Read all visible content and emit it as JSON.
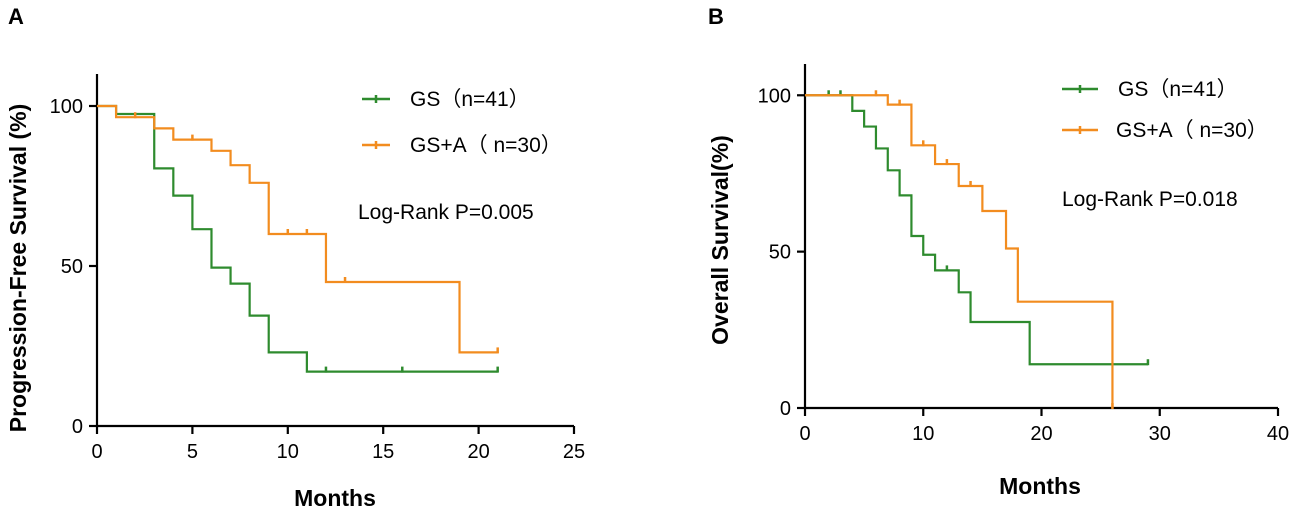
{
  "chart_data": [
    {
      "type": "line",
      "panel_label": "A",
      "xlabel": "Months",
      "ylabel": "Progression-Free Survival (%)",
      "xlim": [
        0,
        25
      ],
      "ylim": [
        0,
        110
      ],
      "xticks": [
        0,
        5,
        10,
        15,
        20,
        25
      ],
      "yticks": [
        0,
        50,
        100
      ],
      "annotation": "Log-Rank P=0.005",
      "series": [
        {
          "name": "GS（n=41）",
          "color": "#2e8b2e",
          "x": [
            0,
            1,
            3,
            4,
            5,
            6,
            7,
            8,
            9,
            11,
            21
          ],
          "y": [
            100,
            97.5,
            80.5,
            72,
            61.5,
            49.5,
            44.5,
            34.5,
            23,
            17,
            17
          ],
          "censored": [
            [
              12,
              17
            ],
            [
              16,
              17
            ],
            [
              21,
              17
            ]
          ]
        },
        {
          "name": "GS+A（ n=30）",
          "color": "#f28c1f",
          "x": [
            0,
            1,
            3,
            4,
            6,
            7,
            8,
            9,
            12,
            19,
            21
          ],
          "y": [
            100,
            96.5,
            93,
            89.5,
            86,
            81.5,
            76,
            60,
            45,
            23,
            23
          ],
          "censored": [
            [
              2,
              96.5
            ],
            [
              5,
              89.5
            ],
            [
              10,
              60
            ],
            [
              11,
              60
            ],
            [
              13,
              45
            ],
            [
              21,
              23
            ]
          ]
        }
      ]
    },
    {
      "type": "line",
      "panel_label": "B",
      "xlabel": "Months",
      "ylabel": "Overall Survival(%)",
      "xlim": [
        0,
        40
      ],
      "ylim": [
        0,
        110
      ],
      "xticks": [
        0,
        10,
        20,
        30,
        40
      ],
      "yticks": [
        0,
        50,
        100
      ],
      "annotation": "Log-Rank P=0.018",
      "series": [
        {
          "name": "GS（n=41）",
          "color": "#2e8b2e",
          "x": [
            0,
            4,
            5,
            6,
            7,
            8,
            9,
            10,
            11,
            13,
            14,
            19,
            29
          ],
          "y": [
            100,
            95,
            90,
            83,
            76,
            68,
            55,
            49,
            44,
            37,
            27.5,
            14,
            14
          ],
          "censored": [
            [
              2,
              100
            ],
            [
              3,
              100
            ],
            [
              12,
              44
            ],
            [
              29,
              14
            ]
          ]
        },
        {
          "name": "GS+A（ n=30）",
          "color": "#f28c1f",
          "x": [
            0,
            7,
            9,
            11,
            13,
            15,
            17,
            18,
            26
          ],
          "y": [
            100,
            97,
            84,
            78,
            71,
            63,
            51,
            34,
            0
          ],
          "censored": [
            [
              6,
              100
            ],
            [
              8,
              97
            ],
            [
              10,
              84
            ],
            [
              12,
              78
            ],
            [
              14,
              71
            ],
            [
              26,
              0
            ]
          ]
        }
      ]
    }
  ]
}
